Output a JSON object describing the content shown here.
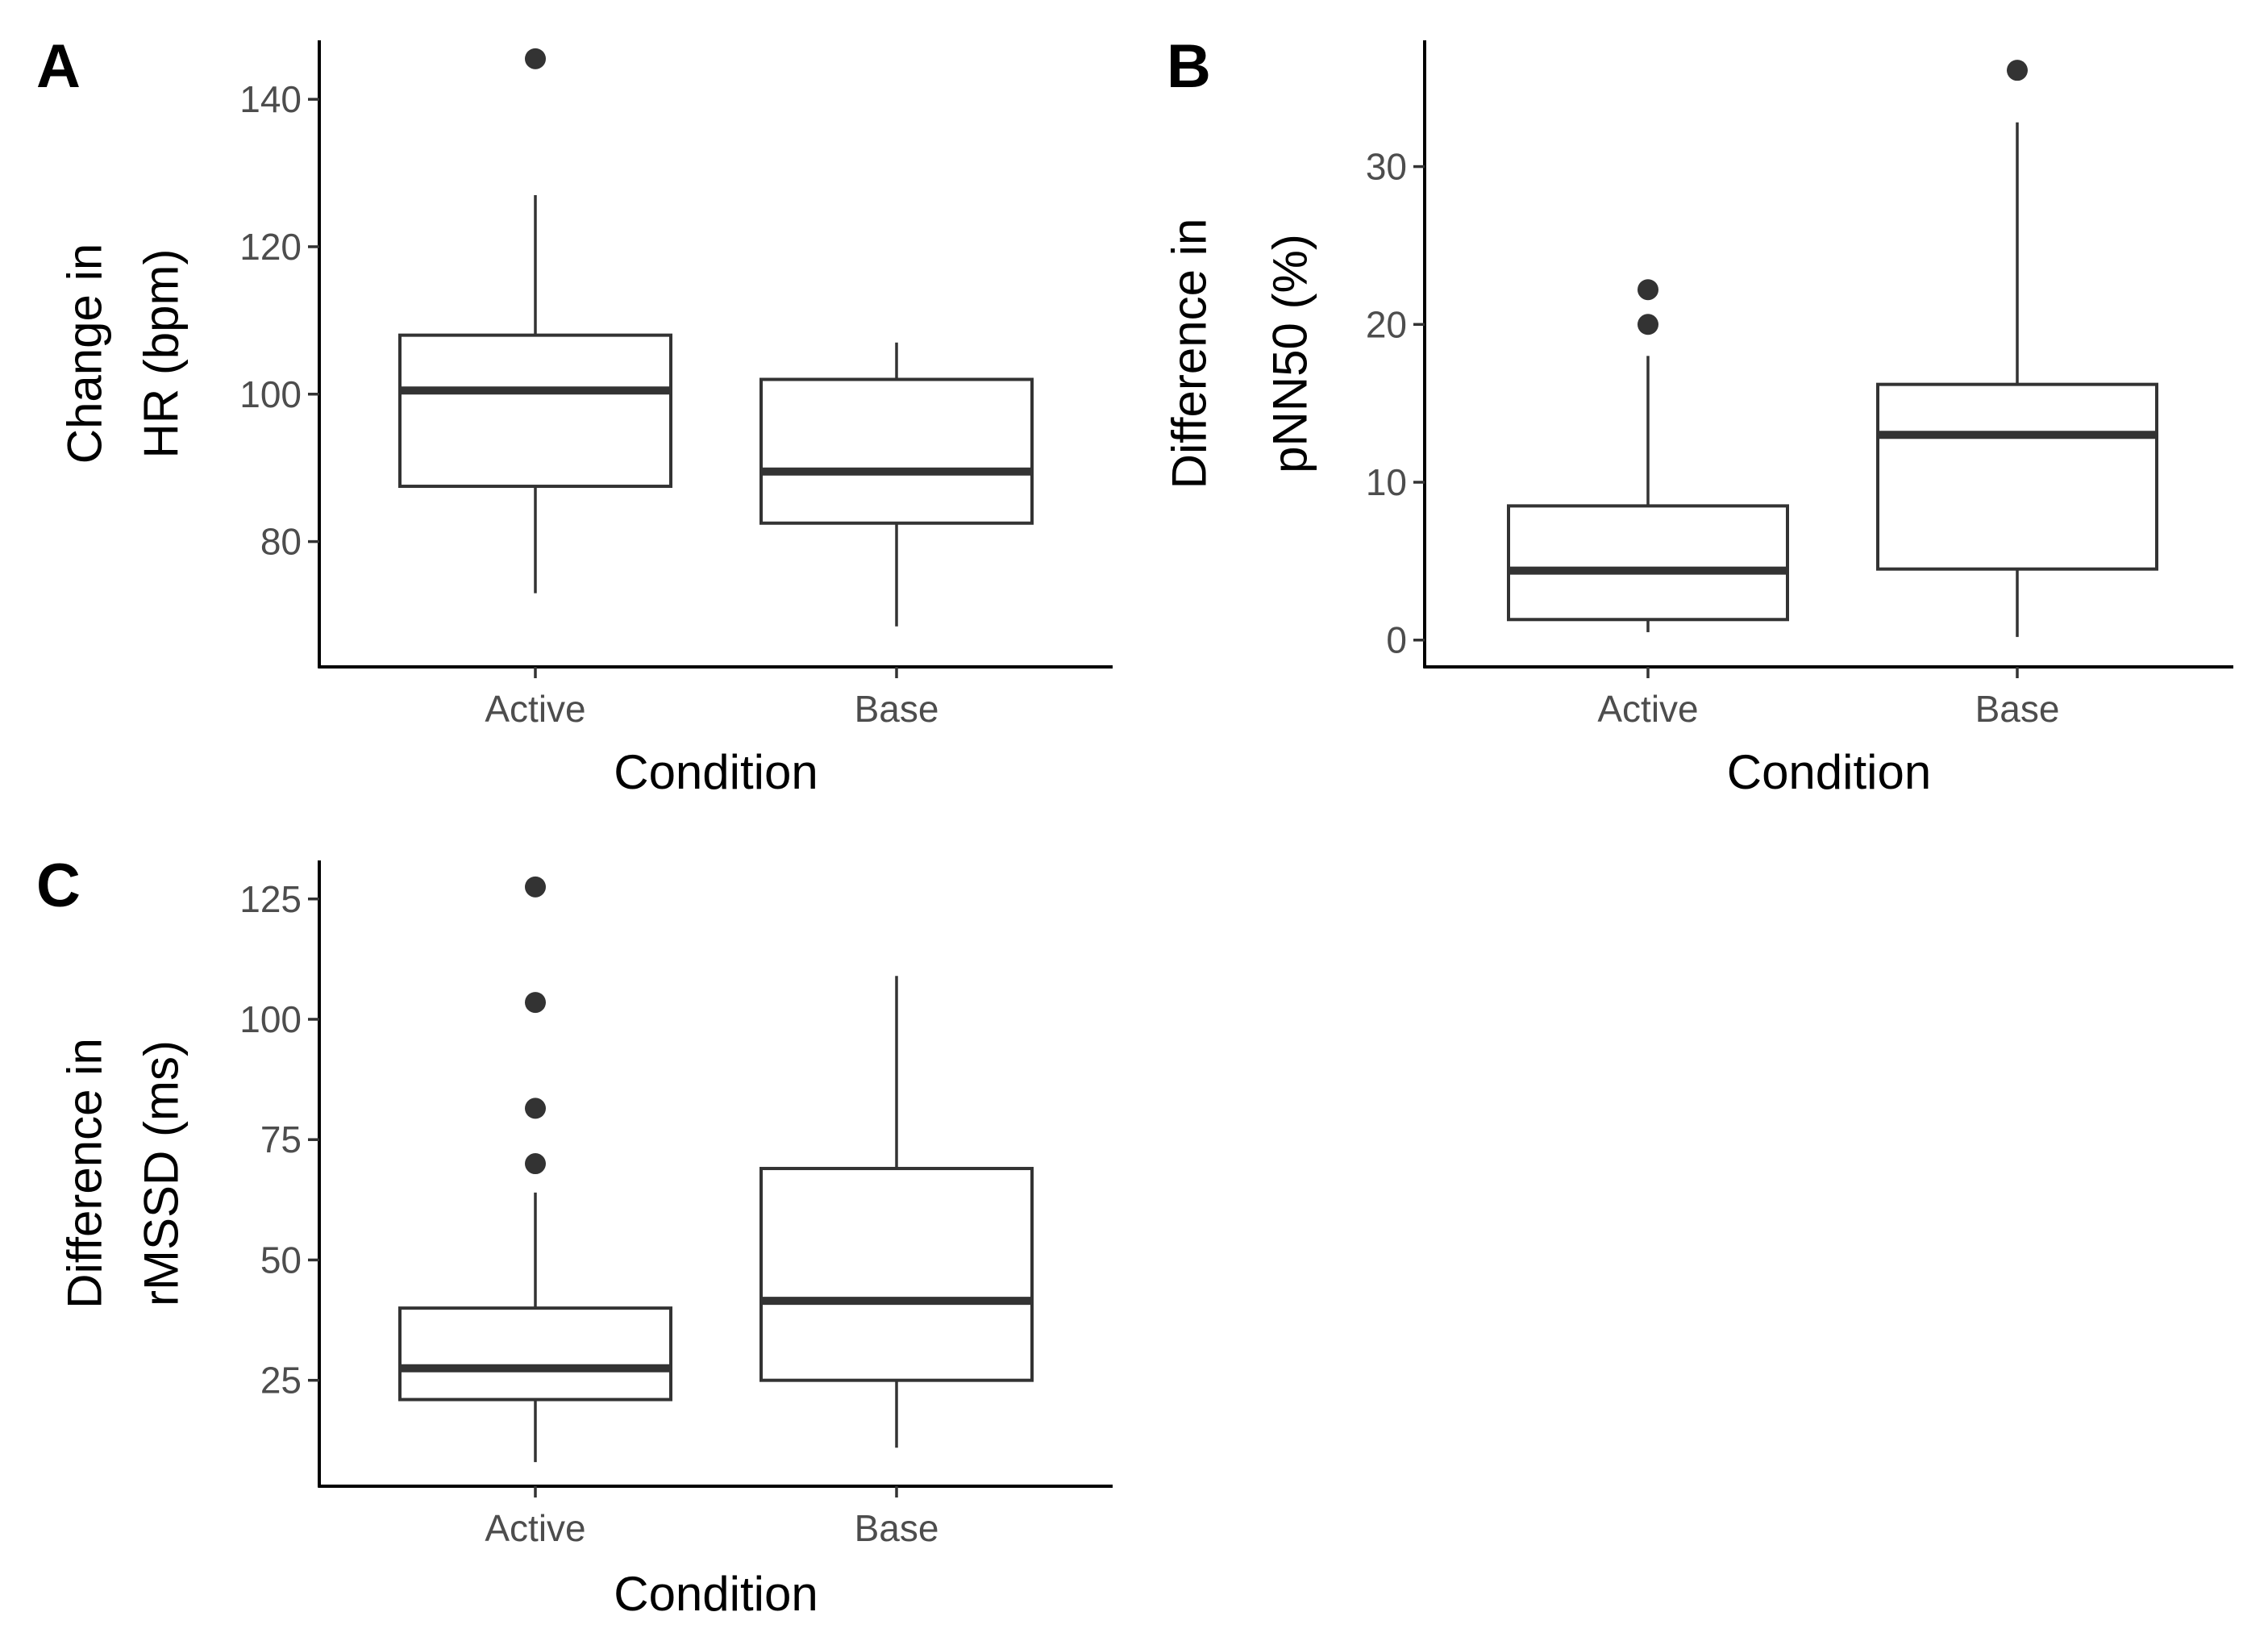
{
  "chart_data": [
    {
      "panel": "A",
      "type": "box",
      "xlabel": "Condition",
      "ylabel_lines": [
        "Change in",
        "HR (bpm)"
      ],
      "categories": [
        "Active",
        "Base"
      ],
      "ylim": [
        63,
        148
      ],
      "yticks": [
        80,
        100,
        120,
        140
      ],
      "boxes": [
        {
          "category": "Active",
          "lower_whisker": 73,
          "q1": 87.5,
          "median": 100.5,
          "q3": 108,
          "upper_whisker": 127,
          "outliers": [
            145.5
          ]
        },
        {
          "category": "Base",
          "lower_whisker": 68.5,
          "q1": 82.5,
          "median": 89.5,
          "q3": 102,
          "upper_whisker": 107,
          "outliers": []
        }
      ]
    },
    {
      "panel": "B",
      "type": "box",
      "xlabel": "Condition",
      "ylabel_lines": [
        "Difference in",
        "pNN50 (%)"
      ],
      "categories": [
        "Active",
        "Base"
      ],
      "ylim": [
        -1.7,
        38
      ],
      "yticks": [
        0,
        10,
        20,
        30
      ],
      "boxes": [
        {
          "category": "Active",
          "lower_whisker": 0.5,
          "q1": 1.3,
          "median": 4.4,
          "q3": 8.5,
          "upper_whisker": 18,
          "outliers": [
            20,
            22.2
          ]
        },
        {
          "category": "Base",
          "lower_whisker": 0.2,
          "q1": 4.5,
          "median": 13,
          "q3": 16.2,
          "upper_whisker": 32.8,
          "outliers": [
            36.1
          ]
        }
      ]
    },
    {
      "panel": "C",
      "type": "box",
      "xlabel": "Condition",
      "ylabel_lines": [
        "Difference in",
        "rMSSD (ms)"
      ],
      "categories": [
        "Active",
        "Base"
      ],
      "ylim": [
        3,
        133
      ],
      "yticks": [
        25,
        50,
        75,
        100,
        125
      ],
      "boxes": [
        {
          "category": "Active",
          "lower_whisker": 8,
          "q1": 21,
          "median": 27.5,
          "q3": 40,
          "upper_whisker": 64,
          "outliers": [
            70,
            81.5,
            103.5,
            127.5
          ]
        },
        {
          "category": "Base",
          "lower_whisker": 11,
          "q1": 25,
          "median": 41.5,
          "q3": 69,
          "upper_whisker": 109,
          "outliers": []
        }
      ]
    }
  ]
}
